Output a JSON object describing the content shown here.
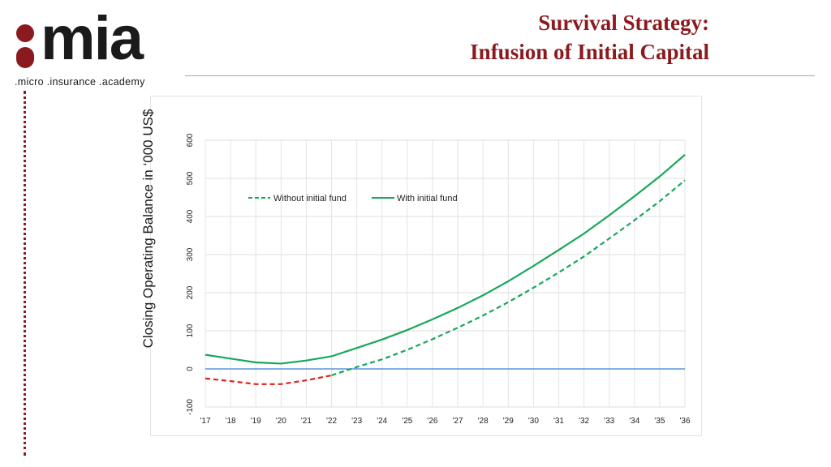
{
  "logo": {
    "word": "mia",
    "tagline": ".micro .insurance .academy"
  },
  "title": {
    "line1": "Survival Strategy:",
    "line2": "Infusion of Initial Capital"
  },
  "colors": {
    "brand": "#8b1a1f",
    "with_fund": "#16a85a",
    "without_fund": "#16a85a",
    "negative": "#e02020",
    "zero_line": "#3a7fd0"
  },
  "chart_data": {
    "type": "line",
    "ylabel": "Closing Operating Balance in ‘000 US$",
    "xlabel": "",
    "ylim": [
      -100,
      600
    ],
    "yticks": [
      "-100",
      "0",
      "100",
      "200",
      "300",
      "400",
      "500",
      "600"
    ],
    "categories": [
      "'17",
      "'18",
      "'19",
      "'20",
      "'21",
      "'22",
      "'23",
      "'24",
      "'25",
      "'26",
      "'27",
      "'28",
      "'29",
      "'30",
      "'31",
      "'32",
      "'33",
      "'34",
      "'35",
      "'36"
    ],
    "grid": true,
    "legend_position": "top-left",
    "series": [
      {
        "name": "Without initial fund",
        "style": "dashed",
        "values": [
          -25,
          -32,
          -40,
          -40,
          -30,
          -17,
          5,
          25,
          50,
          78,
          108,
          140,
          175,
          213,
          253,
          295,
          342,
          390,
          440,
          495
        ]
      },
      {
        "name": "With initial fund",
        "style": "solid",
        "values": [
          37,
          27,
          17,
          14,
          22,
          33,
          55,
          77,
          102,
          130,
          160,
          193,
          230,
          270,
          312,
          355,
          403,
          453,
          505,
          562
        ]
      }
    ],
    "reference_line": {
      "value": 0
    }
  }
}
